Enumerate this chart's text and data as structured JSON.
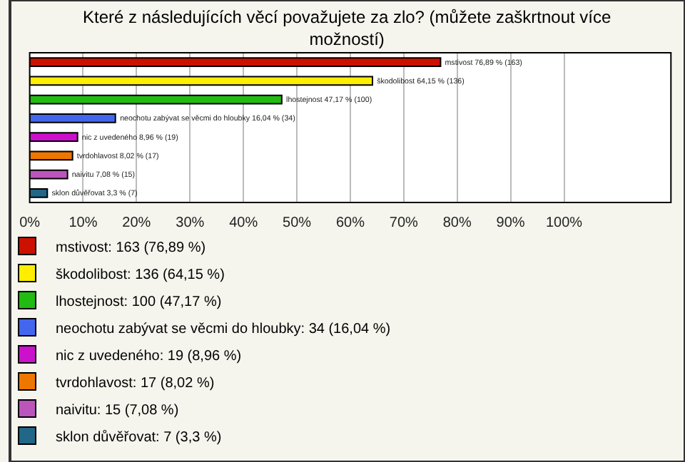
{
  "chart_data": {
    "type": "bar",
    "orientation": "horizontal",
    "title": "Které z následujících věcí považujete za zlo? (můžete zaškrtnout více možností)",
    "categories": [
      "mstivost",
      "škodolibost",
      "lhostejnost",
      "neochotu zabývat se věcmi do hloubky",
      "nic z uvedeného",
      "tvrdohlavost",
      "naivitu",
      "sklon důvěřovat"
    ],
    "series": [
      {
        "name": "mstivost: 163 (76,89 %)",
        "color": "#cc1100",
        "values": [
          76.89,
          null,
          null,
          null,
          null,
          null,
          null,
          null
        ],
        "value_labels": [
          "76,89 % (163)",
          null,
          null,
          null,
          null,
          null,
          null,
          null
        ]
      },
      {
        "name": "škodolibost: 136 (64,15 %)",
        "color": "#ffee00",
        "values": [
          null,
          64.15,
          null,
          null,
          null,
          null,
          null,
          null
        ],
        "value_labels": [
          null,
          "64,15 % (136)",
          null,
          null,
          null,
          null,
          null,
          null
        ]
      },
      {
        "name": "lhostejnost: 100 (47,17 %)",
        "color": "#22bb11",
        "values": [
          null,
          null,
          47.17,
          null,
          null,
          null,
          null,
          null
        ],
        "value_labels": [
          null,
          null,
          "47,17 % (100)",
          null,
          null,
          null,
          null,
          null
        ]
      },
      {
        "name": "neochotu zabývat se věcmi do hloubky: 34 (16,04 %)",
        "color": "#4466ee",
        "values": [
          null,
          null,
          null,
          16.04,
          null,
          null,
          null,
          null
        ],
        "value_labels": [
          null,
          null,
          null,
          "16,04 % (34)",
          null,
          null,
          null,
          null
        ]
      },
      {
        "name": "nic z uvedeného: 19 (8,96 %)",
        "color": "#cc11cc",
        "values": [
          null,
          null,
          null,
          null,
          8.96,
          null,
          null,
          null
        ],
        "value_labels": [
          null,
          null,
          null,
          null,
          "8,96 % (19)",
          null,
          null,
          null
        ]
      },
      {
        "name": "tvrdohlavost: 17 (8,02 %)",
        "color": "#ee7700",
        "values": [
          null,
          null,
          null,
          null,
          null,
          8.02,
          null,
          null
        ],
        "value_labels": [
          null,
          null,
          null,
          null,
          null,
          "8,02 % (17)",
          null,
          null
        ]
      },
      {
        "name": "naivitu: 15 (7,08 %)",
        "color": "#bb55bb",
        "values": [
          null,
          null,
          null,
          null,
          null,
          null,
          7.08,
          null
        ],
        "value_labels": [
          null,
          null,
          null,
          null,
          null,
          null,
          "7,08 % (15)",
          null
        ]
      },
      {
        "name": "sklon důvěřovat: 7 (3,3 %)",
        "color": "#226688",
        "values": [
          null,
          null,
          null,
          null,
          null,
          null,
          null,
          3.3
        ],
        "value_labels": [
          null,
          null,
          null,
          null,
          null,
          null,
          null,
          "3,3 % (7)"
        ]
      }
    ],
    "xlim": [
      0,
      120
    ],
    "xticks": [
      {
        "value": 0,
        "label": "0%"
      },
      {
        "value": 10,
        "label": "10%"
      },
      {
        "value": 20,
        "label": "20%"
      },
      {
        "value": 30,
        "label": "30%"
      },
      {
        "value": 40,
        "label": "40%"
      },
      {
        "value": 50,
        "label": "50%"
      },
      {
        "value": 60,
        "label": "60%"
      },
      {
        "value": 70,
        "label": "70%"
      },
      {
        "value": 80,
        "label": "80%"
      },
      {
        "value": 90,
        "label": "90%"
      },
      {
        "value": 100,
        "label": "100%"
      }
    ],
    "tick_labels": "x",
    "grid": "x",
    "legend": "bottom left"
  }
}
